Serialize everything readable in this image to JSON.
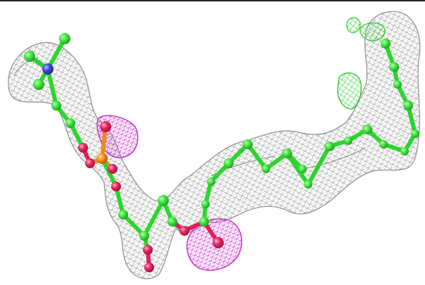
{
  "scene": {
    "description_visible_text": "",
    "colors": {
      "background": "#ffffff",
      "mesh_gray": "#7a7a7a",
      "carbon_green": "#33e033",
      "bond_green": "#22cc22",
      "oxygen_red": "#e0205a",
      "nitrogen_blue": "#3040d8",
      "phosphorus_orange": "#f08a1a",
      "density_magenta": "#cc22cc",
      "density_green": "#22cc22"
    },
    "elements": {
      "electron_density_mesh": "gray-mesh",
      "difference_density_positive": "green-mesh",
      "difference_density_negative": "magenta-mesh",
      "ligand_model": "ball-and-stick"
    }
  }
}
